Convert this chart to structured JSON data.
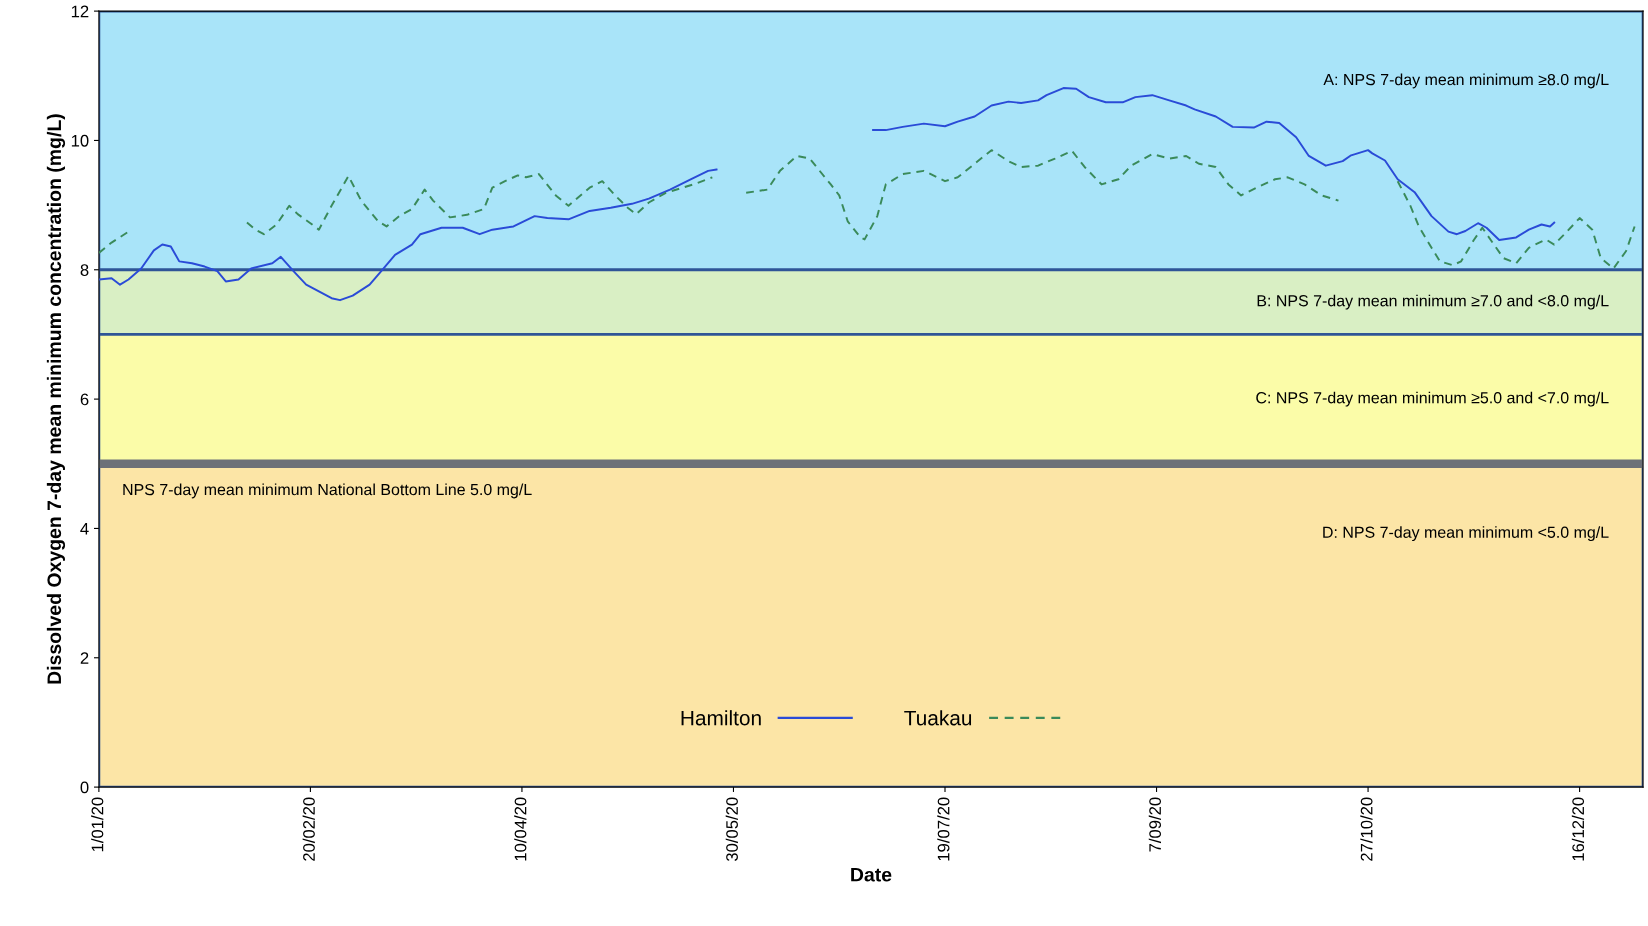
{
  "chart_data": {
    "type": "line",
    "xlabel": "Date",
    "ylabel": "Dissolved Oxygen 7-day mean minimum concentration (mg/L)",
    "xlim": [
      "2020-01-01",
      "2020-12-31"
    ],
    "xticks": [
      {
        "value": "2020-01-01",
        "label": "1/01/20"
      },
      {
        "value": "2020-02-20",
        "label": "20/02/20"
      },
      {
        "value": "2020-04-10",
        "label": "10/04/20"
      },
      {
        "value": "2020-05-30",
        "label": "30/05/20"
      },
      {
        "value": "2020-07-19",
        "label": "19/07/20"
      },
      {
        "value": "2020-09-07",
        "label": "7/09/20"
      },
      {
        "value": "2020-10-27",
        "label": "27/10/20"
      },
      {
        "value": "2020-12-16",
        "label": "16/12/20"
      }
    ],
    "ylim": [
      0,
      12
    ],
    "yticks": [
      0,
      2,
      4,
      6,
      8,
      10,
      12
    ],
    "grid": false,
    "legend": "bottom",
    "bands": [
      {
        "axis": "y",
        "from": 8,
        "to": 12,
        "label": "A: NPS 7-day mean minimum ≥8.0 mg/L",
        "color": "#a9e4f9"
      },
      {
        "axis": "y",
        "from": 7,
        "to": 8,
        "label": "B: NPS 7-day mean minimum ≥7.0 and <8.0 mg/L",
        "color": "#d9efc4"
      },
      {
        "axis": "y",
        "from": 5,
        "to": 7,
        "label": "C: NPS 7-day mean minimum ≥5.0 and <7.0 mg/L",
        "color": "#fbfca8"
      },
      {
        "axis": "y",
        "from": 0,
        "to": 5,
        "label": "D: NPS 7-day mean minimum <5.0 mg/L",
        "color": "#fce5a6"
      }
    ],
    "ref_lines": [
      {
        "axis": "y",
        "value": 5,
        "label": "NPS 7-day mean minimum National Bottom Line 5.0 mg/L",
        "color": "#6d7178"
      }
    ],
    "series": [
      {
        "name": "Hamilton",
        "color": "#2a4bd7",
        "line_style": "solid",
        "x": [
          "2020-01-01",
          "2020-01-04",
          "2020-01-06",
          "2020-01-08",
          "2020-01-11",
          "2020-01-14",
          "2020-01-16",
          "2020-01-18",
          "2020-01-20",
          "2020-01-23",
          "2020-01-26",
          "2020-01-29",
          "2020-01-31",
          "2020-02-03",
          "2020-02-06",
          "2020-02-11",
          "2020-02-13",
          "2020-02-16",
          "2020-02-19",
          "2020-02-21",
          "2020-02-25",
          "2020-02-27",
          "2020-03-01",
          "2020-03-05",
          "2020-03-08",
          "2020-03-11",
          "2020-03-15",
          "2020-03-17",
          "2020-03-22",
          "2020-03-27",
          "2020-03-31",
          "2020-04-03",
          "2020-04-08",
          "2020-04-13",
          "2020-04-16",
          "2020-04-21",
          "2020-04-26",
          "2020-05-01",
          "2020-05-06",
          "2020-05-10",
          "2020-05-15",
          "2020-05-20",
          "2020-05-24",
          "2020-05-26",
          "2020-06-10",
          "2020-07-02",
          "2020-07-05",
          "2020-07-09",
          "2020-07-14",
          "2020-07-19",
          "2020-07-22",
          "2020-07-26",
          "2020-07-30",
          "2020-08-03",
          "2020-08-06",
          "2020-08-10",
          "2020-08-12",
          "2020-08-16",
          "2020-08-19",
          "2020-08-22",
          "2020-08-26",
          "2020-08-30",
          "2020-09-02",
          "2020-09-06",
          "2020-09-10",
          "2020-09-14",
          "2020-09-16",
          "2020-09-21",
          "2020-09-25",
          "2020-09-30",
          "2020-10-03",
          "2020-10-06",
          "2020-10-10",
          "2020-10-13",
          "2020-10-17",
          "2020-10-21",
          "2020-10-23",
          "2020-10-27",
          "2020-10-28",
          "2020-10-31",
          "2020-11-03",
          "2020-11-07",
          "2020-11-11",
          "2020-11-15",
          "2020-11-17",
          "2020-11-19",
          "2020-11-22",
          "2020-11-24",
          "2020-11-27",
          "2020-12-01",
          "2020-12-04",
          "2020-12-07",
          "2020-12-09",
          "2020-12-10"
        ],
        "values": [
          7.85,
          7.87,
          7.77,
          7.85,
          8.02,
          8.3,
          8.39,
          8.36,
          8.13,
          8.1,
          8.05,
          7.98,
          7.82,
          7.85,
          8.02,
          8.1,
          8.2,
          7.98,
          7.77,
          7.7,
          7.56,
          7.53,
          7.6,
          7.77,
          8.0,
          8.23,
          8.39,
          8.55,
          8.65,
          8.65,
          8.55,
          8.62,
          8.67,
          8.83,
          8.8,
          8.78,
          8.91,
          8.96,
          9.02,
          9.1,
          9.24,
          9.4,
          9.53,
          9.55,
          null,
          10.16,
          10.16,
          10.21,
          10.26,
          10.22,
          10.29,
          10.37,
          10.54,
          10.6,
          10.58,
          10.62,
          10.7,
          10.81,
          10.8,
          10.67,
          10.59,
          10.59,
          10.67,
          10.7,
          10.62,
          10.54,
          10.48,
          10.37,
          10.21,
          10.2,
          10.29,
          10.27,
          10.05,
          9.76,
          9.61,
          9.68,
          9.77,
          9.85,
          9.8,
          9.69,
          9.4,
          9.2,
          8.83,
          8.59,
          8.55,
          8.6,
          8.72,
          8.65,
          8.46,
          8.5,
          8.62,
          8.7,
          8.67,
          8.73
        ]
      },
      {
        "name": "Tuakau",
        "color": "#3a8a5a",
        "line_style": "dashed",
        "x": [
          "2020-01-01",
          "2020-01-04",
          "2020-01-08",
          "2020-01-20",
          "2020-02-05",
          "2020-02-07",
          "2020-02-09",
          "2020-02-12",
          "2020-02-15",
          "2020-02-17",
          "2020-02-20",
          "2020-02-22",
          "2020-02-25",
          "2020-02-29",
          "2020-03-03",
          "2020-03-07",
          "2020-03-09",
          "2020-03-12",
          "2020-03-15",
          "2020-03-18",
          "2020-03-20",
          "2020-03-22",
          "2020-03-24",
          "2020-03-28",
          "2020-04-01",
          "2020-04-03",
          "2020-04-06",
          "2020-04-09",
          "2020-04-11",
          "2020-04-14",
          "2020-04-18",
          "2020-04-21",
          "2020-04-26",
          "2020-04-29",
          "2020-05-02",
          "2020-05-05",
          "2020-05-07",
          "2020-05-10",
          "2020-05-14",
          "2020-05-18",
          "2020-05-21",
          "2020-05-25",
          "2020-05-29",
          "2020-06-02",
          "2020-06-07",
          "2020-06-10",
          "2020-06-14",
          "2020-06-17",
          "2020-06-19",
          "2020-06-22",
          "2020-06-24",
          "2020-06-26",
          "2020-06-29",
          "2020-06-30",
          "2020-07-03",
          "2020-07-05",
          "2020-07-09",
          "2020-07-14",
          "2020-07-19",
          "2020-07-22",
          "2020-07-26",
          "2020-07-30",
          "2020-08-03",
          "2020-08-06",
          "2020-08-10",
          "2020-08-14",
          "2020-08-18",
          "2020-08-21",
          "2020-08-25",
          "2020-08-29",
          "2020-09-01",
          "2020-09-06",
          "2020-09-10",
          "2020-09-14",
          "2020-09-17",
          "2020-09-21",
          "2020-09-24",
          "2020-09-27",
          "2020-10-01",
          "2020-10-05",
          "2020-10-08",
          "2020-10-12",
          "2020-10-16",
          "2020-10-20",
          "2020-10-27",
          "2020-11-03",
          "2020-11-06",
          "2020-11-08",
          "2020-11-11",
          "2020-11-13",
          "2020-11-16",
          "2020-11-18",
          "2020-11-21",
          "2020-11-23",
          "2020-11-25",
          "2020-11-28",
          "2020-12-01",
          "2020-12-04",
          "2020-12-08",
          "2020-12-10",
          "2020-12-13",
          "2020-12-16",
          "2020-12-19",
          "2020-12-21",
          "2020-12-24",
          "2020-12-27",
          "2020-12-29"
        ],
        "values": [
          8.26,
          8.42,
          8.59,
          null,
          8.73,
          8.62,
          8.55,
          8.7,
          8.99,
          8.86,
          8.72,
          8.62,
          8.99,
          9.45,
          9.07,
          8.75,
          8.67,
          8.83,
          8.94,
          9.24,
          9.07,
          8.94,
          8.81,
          8.85,
          8.94,
          9.27,
          9.37,
          9.46,
          9.43,
          9.48,
          9.15,
          8.99,
          9.27,
          9.37,
          9.15,
          8.96,
          8.86,
          9.04,
          9.19,
          9.27,
          9.33,
          9.43,
          null,
          9.19,
          9.24,
          9.53,
          9.76,
          9.72,
          9.56,
          9.32,
          9.15,
          8.75,
          8.5,
          8.47,
          8.83,
          9.32,
          9.48,
          9.53,
          9.37,
          9.43,
          9.64,
          9.85,
          9.68,
          9.59,
          9.61,
          9.72,
          9.84,
          9.59,
          9.32,
          9.4,
          9.61,
          9.79,
          9.72,
          9.76,
          9.64,
          9.59,
          9.32,
          9.15,
          9.28,
          9.4,
          9.43,
          9.32,
          9.15,
          9.07,
          null,
          9.37,
          8.99,
          8.67,
          8.34,
          8.13,
          8.07,
          8.13,
          8.46,
          8.65,
          8.46,
          8.18,
          8.1,
          8.34,
          8.47,
          8.39,
          8.59,
          8.8,
          8.62,
          8.18,
          8.02,
          8.29,
          8.67
        ]
      }
    ]
  }
}
